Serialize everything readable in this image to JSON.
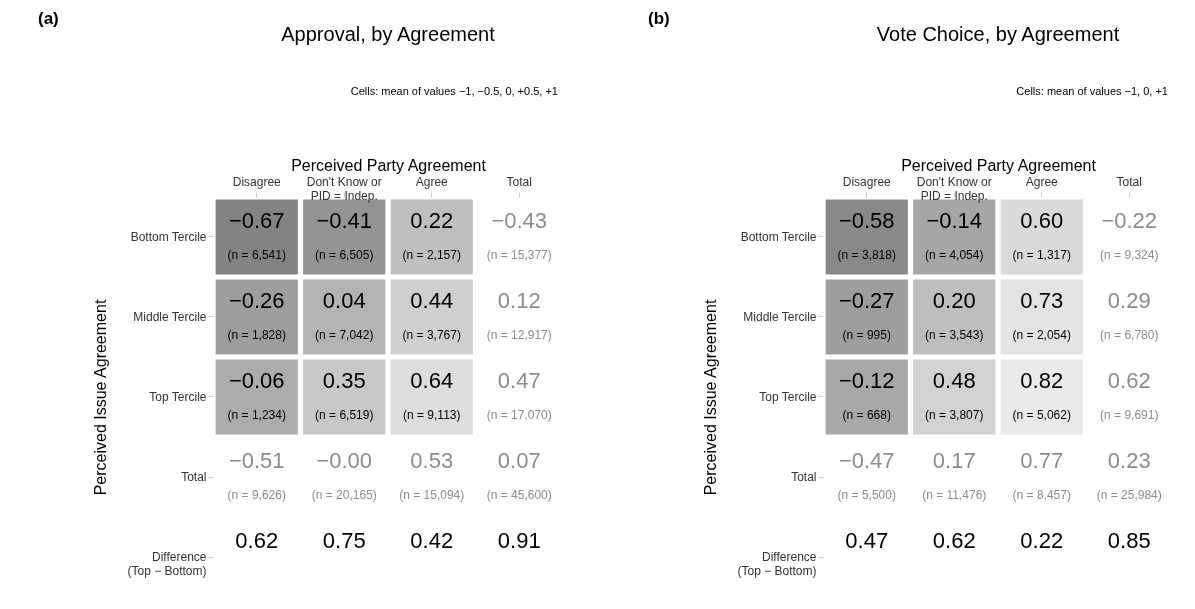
{
  "chart_data": [
    {
      "type": "heatmap",
      "title": "Approval, by Agreement",
      "xlabel": "Perceived Party Agreement",
      "ylabel": "Perceived Issue Agreement",
      "categories": [
        "Disagree",
        "Don't Know or\nPID = Indep.",
        "Agree",
        "Total"
      ],
      "y_categories": [
        "Bottom Tercile",
        "Middle Tercile",
        "Top Tercile",
        "Total",
        "Difference\n(Top − Bottom)"
      ],
      "cells": [
        [
          -0.67,
          -0.41,
          0.22,
          -0.43
        ],
        [
          -0.26,
          0.04,
          0.44,
          0.12
        ],
        [
          -0.06,
          0.35,
          0.64,
          0.47
        ],
        [
          -0.51,
          0.0,
          0.53,
          0.07
        ],
        [
          0.62,
          0.75,
          0.42,
          0.91
        ]
      ],
      "cell_labels": [
        [
          "−0.67",
          "−0.41",
          "0.22",
          "−0.43"
        ],
        [
          "−0.26",
          "0.04",
          "0.44",
          "0.12"
        ],
        [
          "−0.06",
          "0.35",
          "0.64",
          "0.47"
        ],
        [
          "−0.51",
          "−0.00",
          "0.53",
          "0.07"
        ],
        [
          "0.62",
          "0.75",
          "0.42",
          "0.91"
        ]
      ],
      "annotations": [
        "(a)",
        "Cells: mean of values −1, −0.5, 0, +0.5, +1",
        "(n = 6,541)",
        "(n = 6,505)",
        "(n = 2,157)",
        "(n = 15,377)",
        "(n = 1,828)",
        "(n = 7,042)",
        "(n = 3,767)",
        "(n = 12,917)",
        "(n = 1,234)",
        "(n = 6,519)",
        "(n = 9,113)",
        "(n = 17,070)",
        "(n = 9,626)",
        "(n = 20,165)",
        "(n = 15,094)",
        "(n = 45,600)"
      ]
    },
    {
      "type": "heatmap",
      "title": "Vote Choice, by Agreement",
      "xlabel": "Perceived Party Agreement",
      "ylabel": "Perceived Issue Agreement",
      "categories": [
        "Disagree",
        "Don't Know or\nPID = Indep.",
        "Agree",
        "Total"
      ],
      "y_categories": [
        "Bottom Tercile",
        "Middle Tercile",
        "Top Tercile",
        "Total",
        "Difference\n(Top − Bottom)"
      ],
      "cells": [
        [
          -0.58,
          -0.14,
          0.6,
          -0.22
        ],
        [
          -0.27,
          0.2,
          0.73,
          0.29
        ],
        [
          -0.12,
          0.48,
          0.82,
          0.62
        ],
        [
          -0.47,
          0.17,
          0.77,
          0.23
        ],
        [
          0.47,
          0.62,
          0.22,
          0.85
        ]
      ],
      "cell_labels": [
        [
          "−0.58",
          "−0.14",
          "0.60",
          "−0.22"
        ],
        [
          "−0.27",
          "0.20",
          "0.73",
          "0.29"
        ],
        [
          "−0.12",
          "0.48",
          "0.82",
          "0.62"
        ],
        [
          "−0.47",
          "0.17",
          "0.77",
          "0.23"
        ],
        [
          "0.47",
          "0.62",
          "0.22",
          "0.85"
        ]
      ],
      "annotations": [
        "(b)",
        "Cells: mean of values −1, 0, +1",
        "(n = 3,818)",
        "(n = 4,054)",
        "(n = 1,317)",
        "(n = 9,324)",
        "(n = 995)",
        "(n = 3,543)",
        "(n = 2,054)",
        "(n = 6,780)",
        "(n = 668)",
        "(n = 3,807)",
        "(n = 5,062)",
        "(n = 9,691)",
        "(n = 5,500)",
        "(n = 11,476)",
        "(n = 8,457)",
        "(n = 25,984)"
      ]
    }
  ]
}
